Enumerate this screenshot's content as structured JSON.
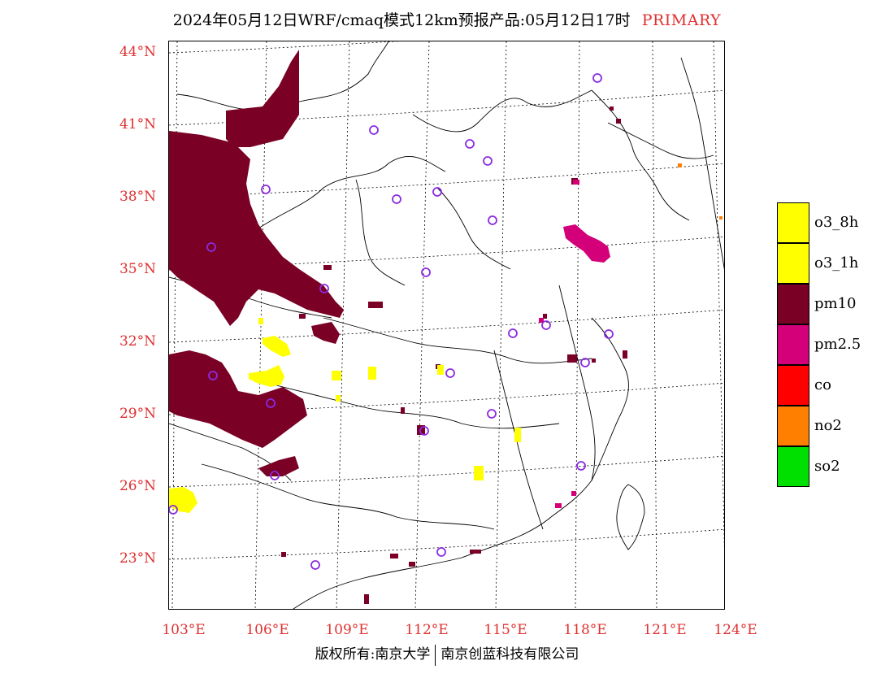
{
  "title": {
    "main": "2024年05月12日WRF/cmaq模式12km预报产品:05月12日17时",
    "tag": "PRIMARY"
  },
  "map": {
    "lat_labels": [
      "44°N",
      "41°N",
      "38°N",
      "35°N",
      "32°N",
      "29°N",
      "26°N",
      "23°N"
    ],
    "lon_labels": [
      "103°E",
      "106°E",
      "109°E",
      "112°E",
      "115°E",
      "118°E",
      "121°E",
      "124°E"
    ],
    "colors": {
      "pm10": "#7a0026",
      "pm2.5": "#d4007a",
      "o3": "#ffff00",
      "no2": "#ff8000",
      "city": "#8a2be2"
    }
  },
  "legend": [
    {
      "label": "o3_8h",
      "color": "#ffff00"
    },
    {
      "label": "o3_1h",
      "color": "#ffff00"
    },
    {
      "label": "pm10",
      "color": "#7a0026"
    },
    {
      "label": "pm2.5",
      "color": "#d4007a"
    },
    {
      "label": "co",
      "color": "#ff0000"
    },
    {
      "label": "no2",
      "color": "#ff8000"
    },
    {
      "label": "so2",
      "color": "#00e000"
    }
  ],
  "footer": {
    "left": "版权所有:南京大学",
    "right": "南京创蓝科技有限公司"
  }
}
